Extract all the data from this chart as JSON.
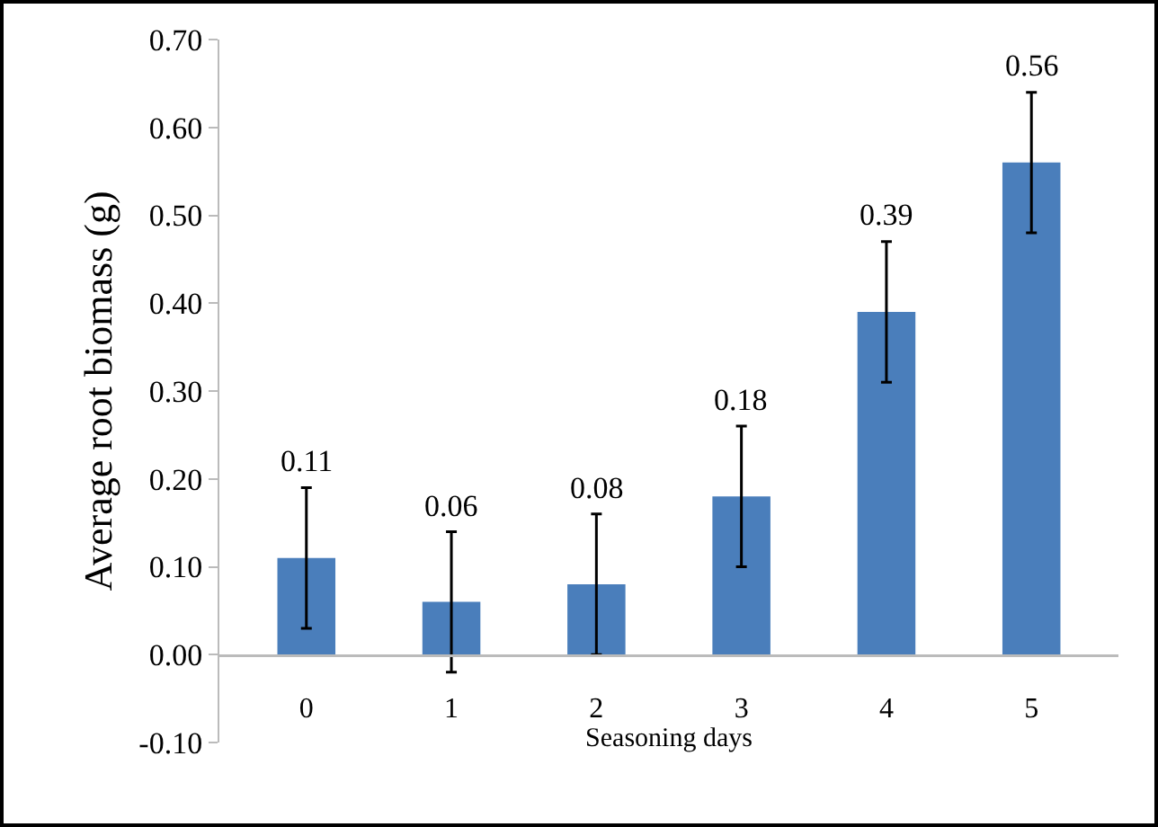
{
  "chart_data": {
    "type": "bar",
    "xlabel": "Seasoning days",
    "ylabel": "Average root biomass (g)",
    "categories": [
      "0",
      "1",
      "2",
      "3",
      "4",
      "5"
    ],
    "values": [
      0.11,
      0.06,
      0.08,
      0.18,
      0.39,
      0.56
    ],
    "errors": [
      0.08,
      0.08,
      0.08,
      0.08,
      0.08,
      0.08
    ],
    "color": "#4a7ebb",
    "ylim": [
      -0.1,
      0.7
    ],
    "yticks": [
      {
        "value": -0.1,
        "label": "-0.10"
      },
      {
        "value": 0,
        "label": "0.00"
      },
      {
        "value": 0.1,
        "label": "0.10"
      },
      {
        "value": 0.2,
        "label": "0.20"
      },
      {
        "value": 0.3,
        "label": "0.30"
      },
      {
        "value": 0.4,
        "label": "0.40"
      },
      {
        "value": 0.5,
        "label": "0.50"
      },
      {
        "value": 0.6,
        "label": "0.60"
      },
      {
        "value": 0.7,
        "label": "0.70"
      }
    ],
    "data_labels": true,
    "grid": false
  }
}
